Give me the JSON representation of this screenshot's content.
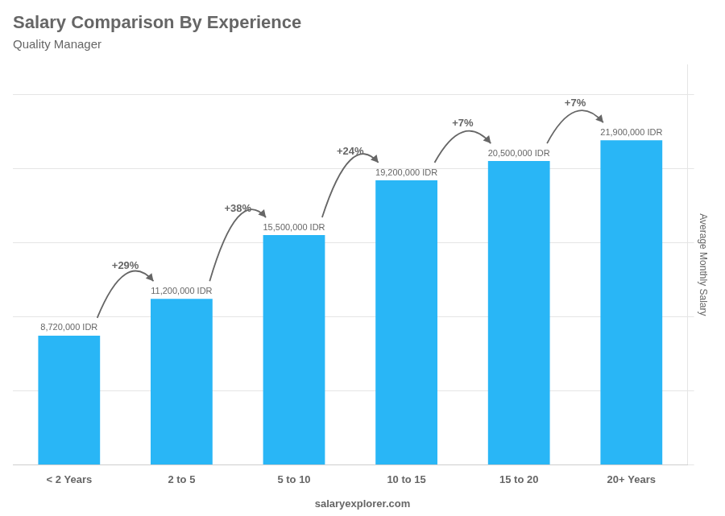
{
  "chart_data": {
    "type": "bar",
    "title": "Salary Comparison By Experience",
    "subtitle": "Quality Manager",
    "categories": [
      "< 2 Years",
      "2 to 5",
      "5 to 10",
      "10 to 15",
      "15 to 20",
      "20+ Years"
    ],
    "values": [
      8720000,
      11200000,
      15500000,
      19200000,
      20500000,
      21900000
    ],
    "value_labels": [
      "8,720,000 IDR",
      "11,200,000 IDR",
      "15,500,000 IDR",
      "19,200,000 IDR",
      "20,500,000 IDR",
      "21,900,000 IDR"
    ],
    "data_labels": true,
    "color": "#29b6f6",
    "annotations": [
      "+29%",
      "+38%",
      "+24%",
      "+7%",
      "+7%"
    ],
    "ylabel": "Average Monthly Salary",
    "footer": "salaryexplorer.com",
    "ylim": [
      0,
      27000000
    ],
    "yticks": [
      0,
      5000000,
      10000000,
      15000000,
      20000000,
      25000000
    ],
    "grid": true,
    "tick_labels": "x"
  }
}
